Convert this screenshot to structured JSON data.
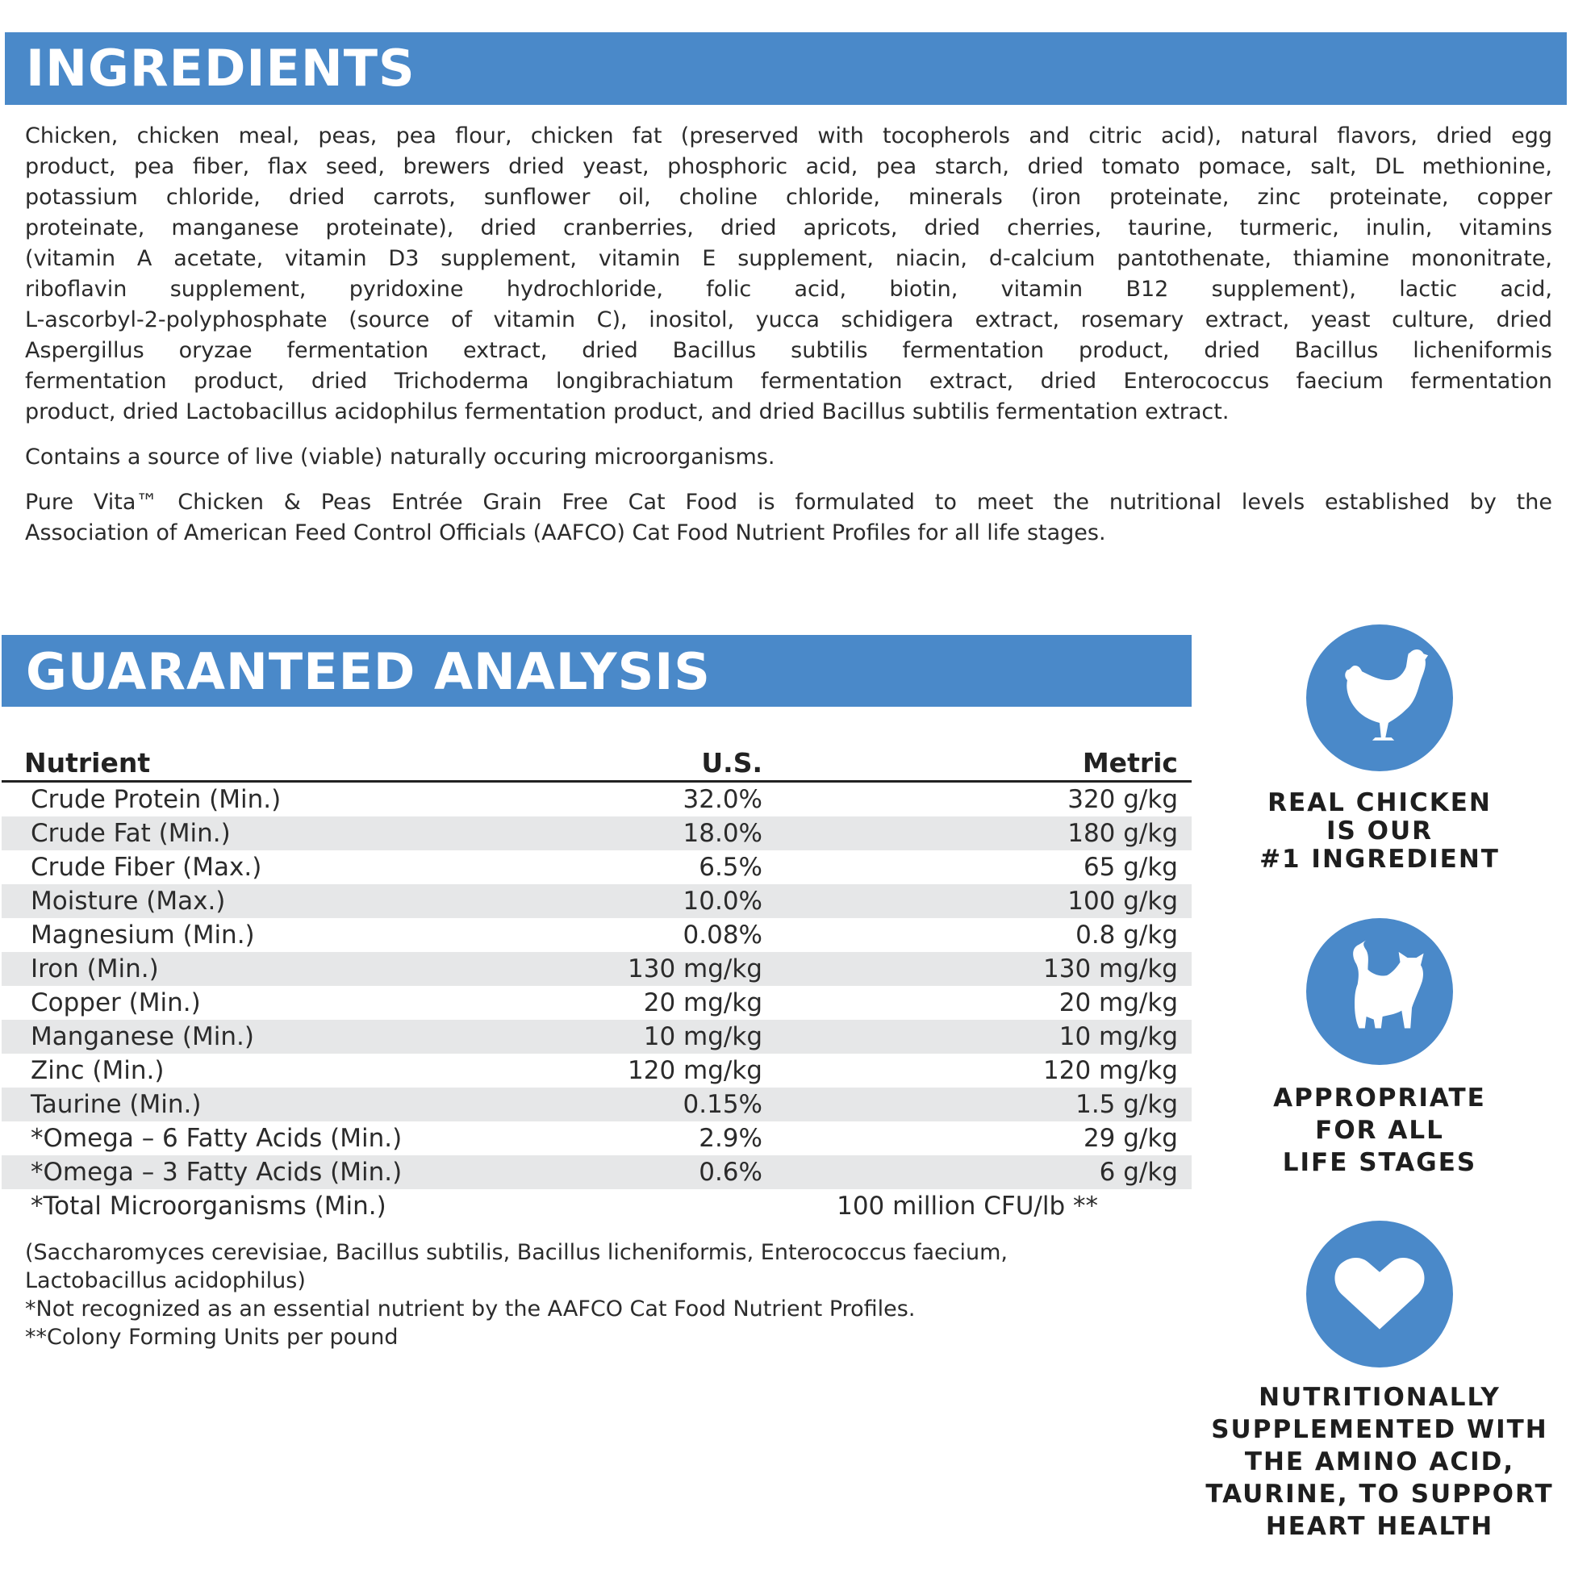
{
  "ingredients": {
    "title": "INGREDIENTS",
    "lines": [
      "Chicken, chicken meal, peas, pea flour, chicken fat (preserved with tocopherols and citric acid), natural flavors, dried egg",
      "product, pea fiber, flax seed, brewers dried yeast, phosphoric acid, pea starch, dried tomato pomace, salt, DL methionine,",
      "potassium chloride, dried carrots, sunflower oil, choline chloride, minerals (iron proteinate, zinc proteinate, copper",
      "proteinate, manganese proteinate), dried cranberries, dried apricots, dried cherries, taurine, turmeric, inulin, vitamins",
      "(vitamin A acetate, vitamin D3 supplement, vitamin E supplement, niacin, d-calcium pantothenate, thiamine mononitrate,",
      "riboflavin supplement, pyridoxine hydrochloride, folic acid, biotin, vitamin B12 supplement), lactic acid,",
      "L-ascorbyl-2-polyphosphate (source of vitamin C), inositol, yucca schidigera extract, rosemary extract, yeast culture, dried",
      "Aspergillus oryzae fermentation extract, dried Bacillus subtilis fermentation product, dried Bacillus licheniformis",
      "fermentation product, dried Trichoderma longibrachiatum fermentation extract, dried Enterococcus faecium fermentation",
      "product, dried Lactobacillus acidophilus fermentation product, and dried Bacillus subtilis fermentation extract."
    ],
    "microorganisms_note": "Contains a source of live (viable) naturally occuring microorganisms.",
    "aafco_lines": [
      "Pure Vita™ Chicken & Peas Entrée Grain Free Cat Food is formulated to meet the nutritional levels established by the",
      "Association of American Feed Control Officials (AAFCO) Cat Food Nutrient Profiles for all life stages."
    ]
  },
  "analysis": {
    "title": "GUARANTEED ANALYSIS",
    "headers": [
      "Nutrient",
      "U.S.",
      "Metric"
    ],
    "rows": [
      [
        "Crude Protein (Min.)",
        "32.0%",
        "320 g/kg"
      ],
      [
        "Crude Fat (Min.)",
        "18.0%",
        "180 g/kg"
      ],
      [
        "Crude Fiber (Max.)",
        "6.5%",
        "65 g/kg"
      ],
      [
        "Moisture (Max.)",
        "10.0%",
        "100 g/kg"
      ],
      [
        "Magnesium (Min.)",
        "0.08%",
        "0.8 g/kg"
      ],
      [
        "Iron (Min.)",
        "130 mg/kg",
        "130 mg/kg"
      ],
      [
        "Copper (Min.)",
        "20 mg/kg",
        "20 mg/kg"
      ],
      [
        "Manganese (Min.)",
        "10 mg/kg",
        "10 mg/kg"
      ],
      [
        "Zinc (Min.)",
        "120 mg/kg",
        "120 mg/kg"
      ],
      [
        "Taurine (Min.)",
        "0.15%",
        "1.5 g/kg"
      ],
      [
        "*Omega – 6 Fatty Acids (Min.)",
        "2.9%",
        "29 g/kg"
      ],
      [
        "*Omega – 3 Fatty Acids (Min.)",
        "0.6%",
        "6 g/kg"
      ]
    ],
    "total_row": [
      "*Total Microorganisms (Min.)",
      "100 million CFU/lb **"
    ],
    "notes": [
      "(Saccharomyces cerevisiae, Bacillus subtilis, Bacillus licheniformis, Enterococcus faecium,",
      "Lactobacillus acidophilus)",
      "*Not recognized as an essential nutrient by the AAFCO Cat Food Nutrient Profiles.",
      "**Colony Forming Units per pound"
    ]
  },
  "badges": [
    {
      "icon": "chicken-icon",
      "lines": [
        "REAL CHICKEN",
        "IS OUR",
        "#1 INGREDIENT"
      ]
    },
    {
      "icon": "cat-icon",
      "lines": [
        "APPROPRIATE",
        "FOR ALL",
        "LIFE STAGES"
      ]
    },
    {
      "icon": "heart-icon",
      "lines": [
        "NUTRITIONALLY",
        "SUPPLEMENTED WITH",
        "THE AMINO ACID,",
        "TAURINE, TO SUPPORT",
        "HEART HEALTH"
      ]
    }
  ],
  "colors": {
    "accent": "#4a89c9",
    "row_alt": "#e6e7e8",
    "text": "#2b2b2b"
  }
}
